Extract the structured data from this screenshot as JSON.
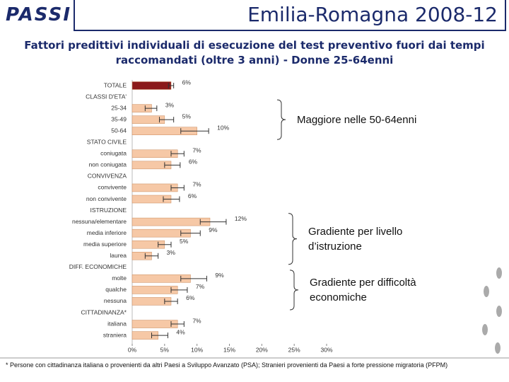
{
  "header": {
    "logo": "PASSI",
    "title": "Emilia-Romagna 2008-12"
  },
  "chart_data": {
    "type": "bar",
    "orientation": "horizontal",
    "subtitle": "Fattori predittivi individuali di esecuzione del test preventivo fuori dai tempi raccomandati (oltre 3 anni) - Donne 25-64enni",
    "categories": [
      "TOTALE",
      "CLASSI D'ETA'",
      "25-34",
      "35-49",
      "50-64",
      "STATO CIVILE",
      "coniugata",
      "non coniugata",
      "CONVIVENZA",
      "convivente",
      "non convivente",
      "ISTRUZIONE",
      "nessuna/elementare",
      "media inferiore",
      "media superiore",
      "laurea",
      "DIFF. ECONOMICHE",
      "molte",
      "qualche",
      "nessuna",
      "CITTADINANZA*",
      "italiana",
      "straniera"
    ],
    "series": [
      {
        "values": [
          6,
          null,
          3,
          5,
          10,
          null,
          7,
          6,
          null,
          7,
          6,
          null,
          12,
          9,
          5,
          3,
          null,
          9,
          7,
          6,
          null,
          7,
          4
        ],
        "value_labels": [
          "6%",
          null,
          "3%",
          "5%",
          "10%",
          null,
          "7%",
          "6%",
          null,
          "7%",
          "6%",
          null,
          "12%",
          "9%",
          "5%",
          "3%",
          null,
          "9%",
          "7%",
          "6%",
          null,
          "7%",
          "4%"
        ],
        "ci": [
          [
            5.6,
            6.4
          ],
          null,
          [
            2,
            3.8
          ],
          [
            4.2,
            6.4
          ],
          [
            7.5,
            11.8
          ],
          null,
          [
            6,
            8
          ],
          [
            5,
            7.4
          ],
          null,
          [
            6,
            8
          ],
          [
            4.8,
            7.3
          ],
          null,
          [
            10.5,
            14.5
          ],
          [
            7.5,
            10.5
          ],
          [
            4,
            6
          ],
          [
            2,
            4
          ],
          null,
          [
            7.5,
            11.5
          ],
          [
            6,
            8.5
          ],
          [
            5,
            7
          ],
          null,
          [
            6,
            8
          ],
          [
            3,
            5.5
          ]
        ],
        "colors": [
          "#8b1a1a",
          null,
          "#f6c8a6",
          "#f6c8a6",
          "#f6c8a6",
          null,
          "#f6c8a6",
          "#f6c8a6",
          null,
          "#f6c8a6",
          "#f6c8a6",
          null,
          "#f6c8a6",
          "#f6c8a6",
          "#f6c8a6",
          "#f6c8a6",
          null,
          "#f6c8a6",
          "#f6c8a6",
          "#f6c8a6",
          null,
          "#f6c8a6",
          "#f6c8a6"
        ]
      }
    ],
    "xlim": [
      0,
      30
    ],
    "xticks": [
      {
        "value": 0,
        "label": "0%"
      },
      {
        "value": 5,
        "label": "5%"
      },
      {
        "value": 10,
        "label": "10%"
      },
      {
        "value": 15,
        "label": "15%"
      },
      {
        "value": 20,
        "label": "20%"
      },
      {
        "value": 25,
        "label": "25%"
      },
      {
        "value": 30,
        "label": "30%"
      }
    ],
    "annotations": [
      {
        "text": "Maggiore nelle 50-64enni",
        "rows": [
          2,
          4
        ]
      },
      {
        "text": "Gradiente per livello d’istruzione",
        "rows": [
          12,
          15
        ]
      },
      {
        "text": "Gradiente per difficoltà economiche",
        "rows": [
          17,
          19
        ]
      }
    ],
    "footnote": "* Persone con cittadinanza italiana o provenienti da altri Paesi a Sviluppo Avanzato (PSA); Stranieri provenienti da Paesi a forte pressione migratoria (PFPM)"
  }
}
